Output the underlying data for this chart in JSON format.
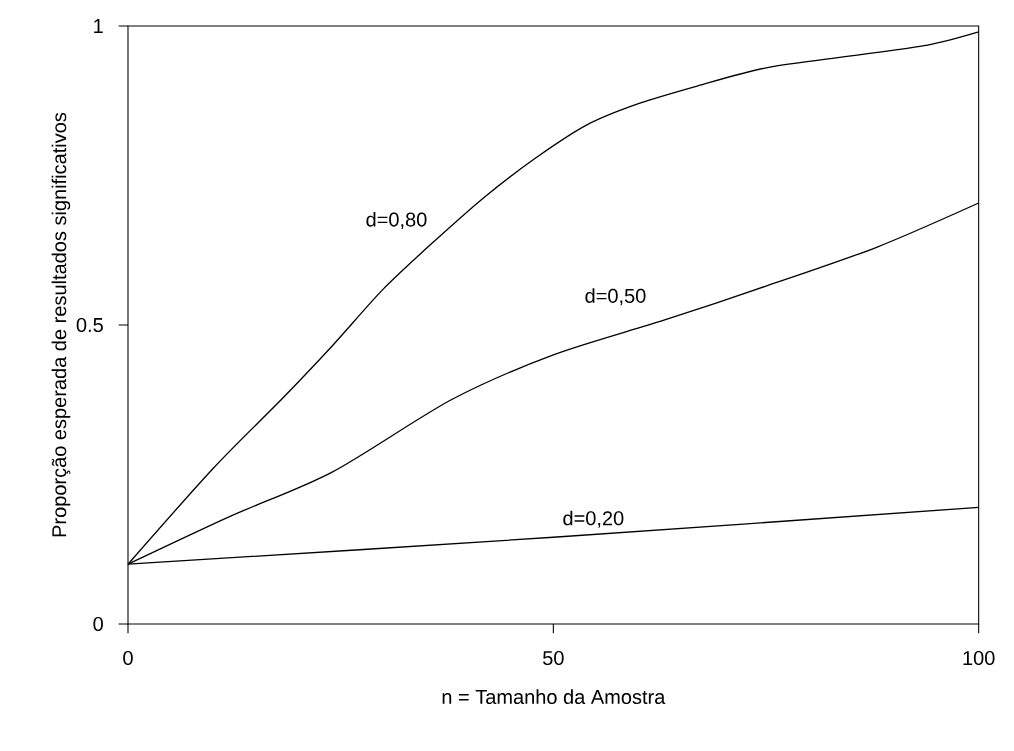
{
  "chart_data": {
    "type": "line",
    "xlabel": "n = Tamanho da Amostra",
    "ylabel": "Proporção esperada de resultados significativos",
    "xlim": [
      0,
      100
    ],
    "ylim": [
      0,
      1
    ],
    "xticks": [
      0,
      50,
      100
    ],
    "yticks": [
      0,
      0.5,
      1
    ],
    "series": [
      {
        "name": "d=0,80",
        "color": "#000000",
        "x": [
          0,
          10,
          18,
          24,
          30,
          36,
          42,
          48,
          54,
          60,
          67,
          75,
          85,
          94,
          100
        ],
        "values": [
          0.1,
          0.26,
          0.375,
          0.465,
          0.56,
          0.64,
          0.715,
          0.78,
          0.835,
          0.87,
          0.9,
          0.93,
          0.95,
          0.968,
          0.99
        ]
      },
      {
        "name": "d=0,50",
        "color": "#000000",
        "x": [
          0,
          12,
          24,
          38,
          50,
          63,
          75,
          88,
          100
        ],
        "values": [
          0.1,
          0.18,
          0.254,
          0.375,
          0.45,
          0.508,
          0.565,
          0.63,
          0.704
        ]
      },
      {
        "name": "d=0,20",
        "color": "#000000",
        "x": [
          0,
          50,
          100
        ],
        "values": [
          0.1,
          0.145,
          0.195
        ]
      }
    ]
  }
}
